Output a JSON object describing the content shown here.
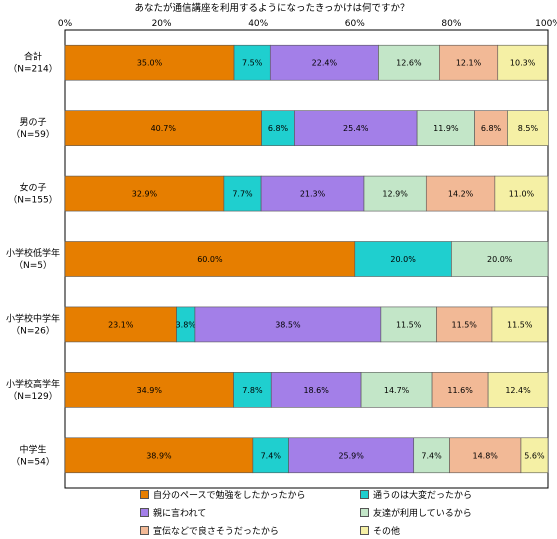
{
  "chart_data": {
    "type": "bar",
    "stacked": true,
    "orientation": "horizontal",
    "percent_stacked": true,
    "title": "あなたが通信講座を利用するようになったきっかけは何ですか？",
    "xlim": [
      0,
      100
    ],
    "x_ticks": [
      "0%",
      "20%",
      "40%",
      "60%",
      "80%",
      "100%"
    ],
    "grid": false,
    "legend_position": "bottom",
    "categories": [
      [
        "合計",
        "（N=214）"
      ],
      [
        "男の子",
        "（N=59）"
      ],
      [
        "女の子",
        "（N=155）"
      ],
      [
        "小学校低学年",
        "（N=5）"
      ],
      [
        "小学校中学年",
        "（N=26）"
      ],
      [
        "小学校高学年",
        "（N=129）"
      ],
      [
        "中学生",
        "（N=54）"
      ]
    ],
    "series": [
      {
        "name": "自分のペースで勉強をしたかったから",
        "color": "#E67E00",
        "values": [
          35.0,
          40.7,
          32.9,
          60.0,
          23.1,
          34.9,
          38.9
        ],
        "labels": [
          "35.0%",
          "40.7%",
          "32.9%",
          "60.0%",
          "23.1%",
          "34.9%",
          "38.9%"
        ]
      },
      {
        "name": "通うのは大変だったから",
        "color": "#1FCFCF",
        "values": [
          7.5,
          6.8,
          7.7,
          20.0,
          3.8,
          7.8,
          7.4
        ],
        "labels": [
          "7.5%",
          "6.8%",
          "7.7%",
          "20.0%",
          "3.8%",
          "7.8%",
          "7.4%"
        ]
      },
      {
        "name": "親に言われて",
        "color": "#A37FE8",
        "values": [
          22.4,
          25.4,
          21.3,
          0,
          38.5,
          18.6,
          25.9
        ],
        "labels": [
          "22.4%",
          "25.4%",
          "21.3%",
          "",
          "38.5%",
          "18.6%",
          "25.9%"
        ]
      },
      {
        "name": "友達が利用しているから",
        "color": "#C3E6C8",
        "values": [
          12.6,
          11.9,
          12.9,
          20.0,
          11.5,
          14.7,
          7.4
        ],
        "labels": [
          "12.6%",
          "11.9%",
          "12.9%",
          "20.0%",
          "11.5%",
          "14.7%",
          "7.4%"
        ]
      },
      {
        "name": "宣伝などで良さそうだったから",
        "color": "#F2B996",
        "values": [
          12.1,
          6.8,
          14.2,
          0,
          11.5,
          11.6,
          14.8
        ],
        "labels": [
          "12.1%",
          "6.8%",
          "14.2%",
          "",
          "11.5%",
          "11.6%",
          "14.8%"
        ]
      },
      {
        "name": "その他",
        "color": "#F5F0A5",
        "values": [
          10.3,
          8.5,
          11.0,
          0,
          11.5,
          12.4,
          5.6
        ],
        "labels": [
          "10.3%",
          "8.5%",
          "11.0%",
          "",
          "11.5%",
          "12.4%",
          "5.6%"
        ]
      }
    ]
  }
}
